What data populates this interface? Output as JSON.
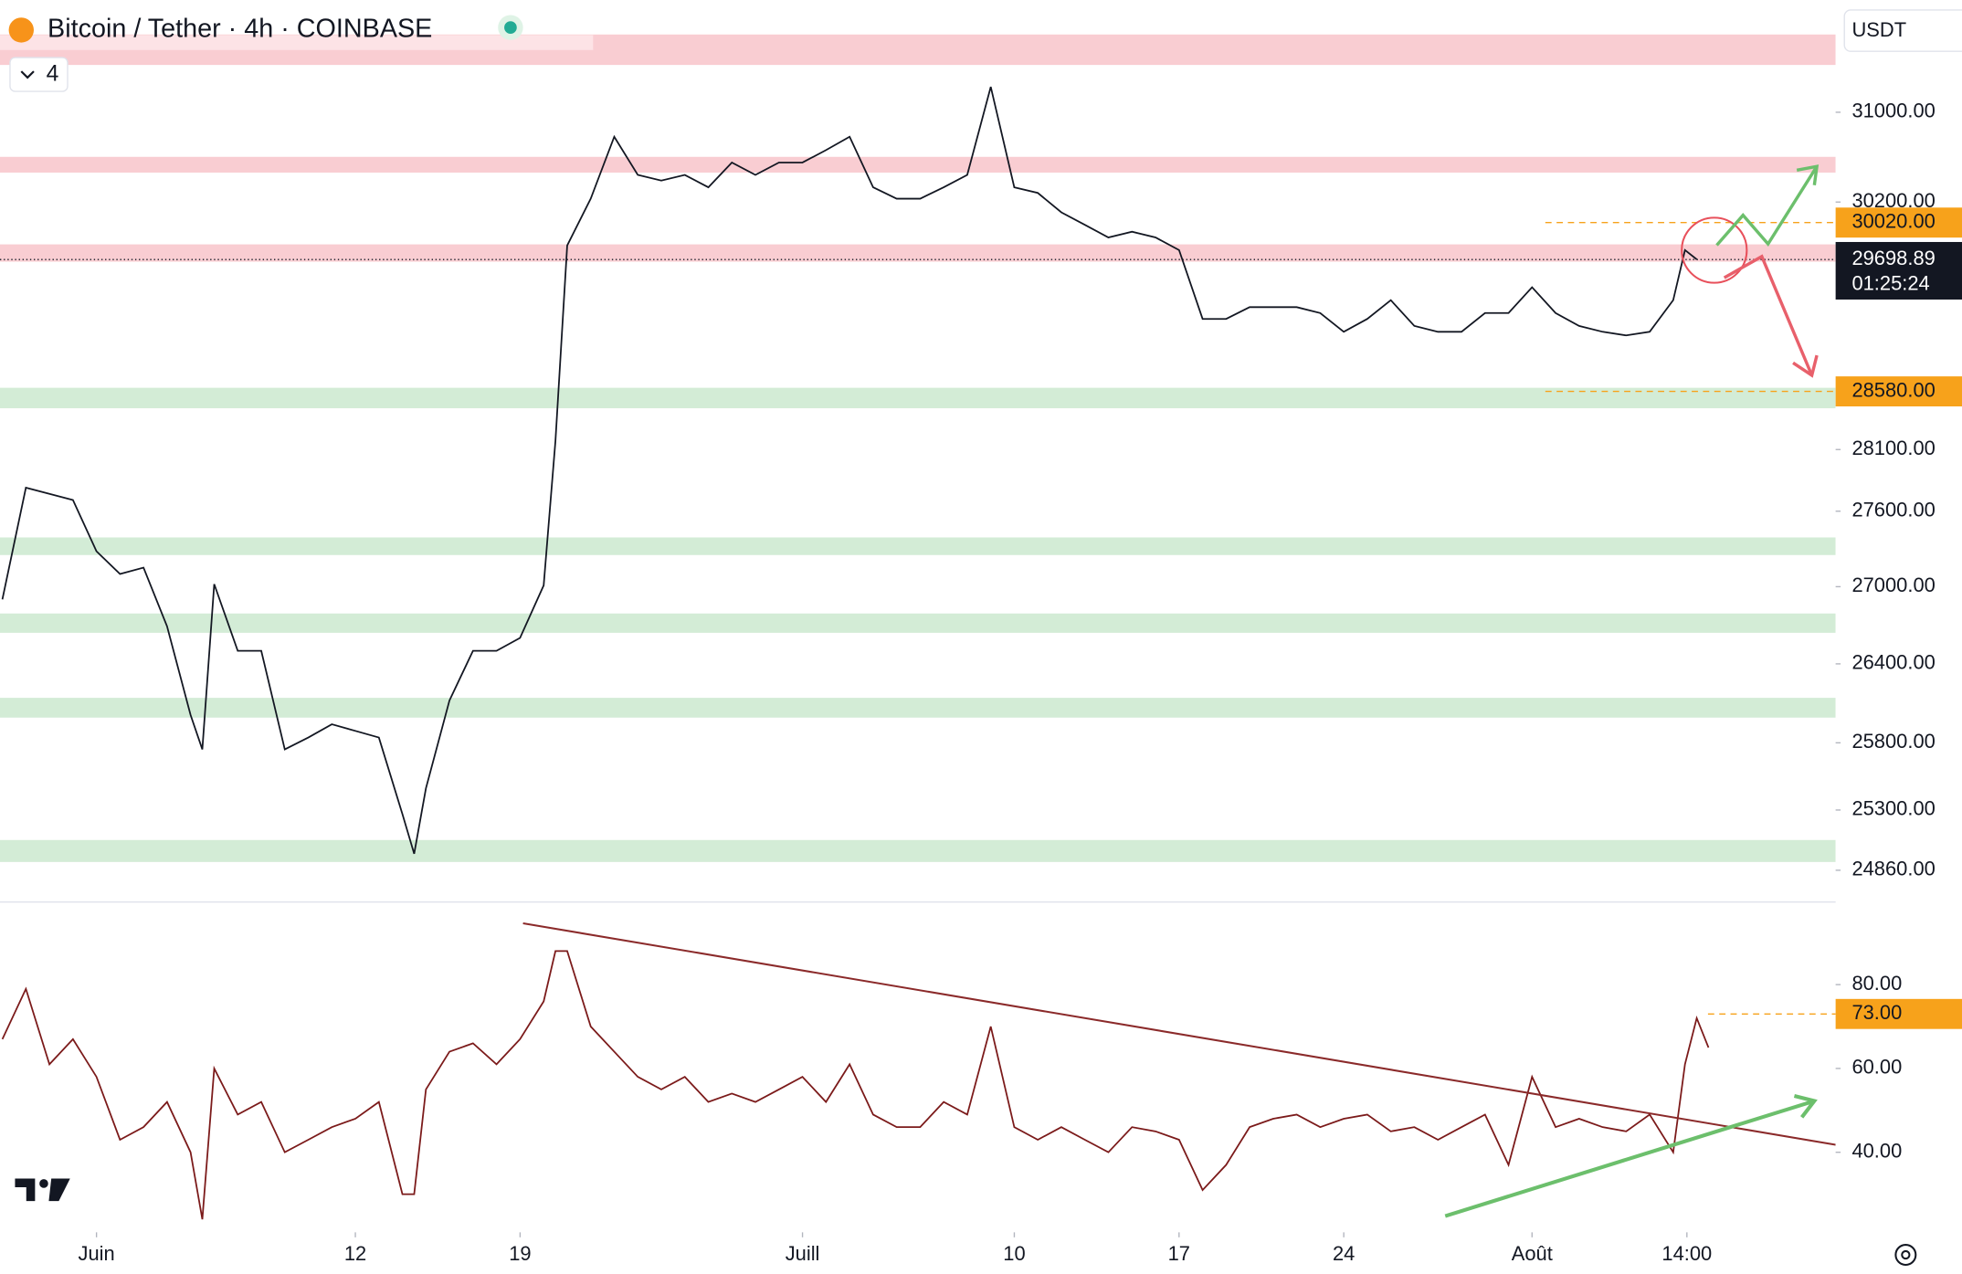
{
  "header": {
    "symbol": "Bitcoin / Tether · 4h · COINBASE",
    "indicator_count": 4,
    "currency": "USDT"
  },
  "chart_data": [
    {
      "type": "line",
      "log": true,
      "color": "#131722",
      "x": [
        -3,
        -2,
        0,
        1,
        2,
        3,
        4,
        5,
        5.5,
        6,
        7,
        8,
        9,
        10,
        11,
        12,
        13,
        14,
        14.5,
        15,
        16,
        17,
        18,
        19,
        20,
        20.5,
        21,
        22,
        23,
        24,
        25,
        26,
        27,
        28,
        29,
        30,
        31,
        32,
        33,
        34,
        35,
        36,
        37,
        38,
        39,
        40,
        41,
        42,
        43,
        44,
        45,
        46,
        47,
        48,
        49,
        50,
        51,
        52,
        53,
        54,
        55,
        56,
        57,
        58,
        59,
        60,
        61,
        62,
        63,
        64,
        65,
        66,
        67,
        68,
        68.5,
        69
      ],
      "values": [
        26900,
        27790,
        27690,
        27280,
        27100,
        27150,
        26690,
        26010,
        25750,
        27020,
        26500,
        26500,
        25750,
        25840,
        25940,
        25890,
        25840,
        25270,
        24980,
        25460,
        26120,
        26500,
        26500,
        26600,
        27010,
        28170,
        29820,
        30230,
        30780,
        30440,
        30390,
        30440,
        30330,
        30550,
        30440,
        30550,
        30550,
        30660,
        30780,
        30330,
        30230,
        30230,
        30330,
        30440,
        31230,
        30330,
        30280,
        30110,
        30000,
        29890,
        29940,
        29890,
        29780,
        29190,
        29190,
        29290,
        29290,
        29290,
        29240,
        29080,
        29190,
        29350,
        29130,
        29080,
        29080,
        29240,
        29240,
        29460,
        29240,
        29130,
        29080,
        29050,
        29080,
        29350,
        29780,
        29700
      ],
      "xlim": [
        -3.1,
        74.9
      ],
      "ylim": [
        24640,
        32030
      ],
      "yticks": [
        {
          "value": 31000,
          "label": "31000.00"
        },
        {
          "value": 30200,
          "label": "30200.00"
        },
        {
          "value": 28100,
          "label": "28100.00"
        },
        {
          "value": 27600,
          "label": "27600.00"
        },
        {
          "value": 27000,
          "label": "27000.00"
        },
        {
          "value": 26400,
          "label": "26400.00"
        },
        {
          "value": 25800,
          "label": "25800.00"
        },
        {
          "value": 25300,
          "label": "25300.00"
        },
        {
          "value": 24860,
          "label": "24860.00"
        }
      ],
      "zones": [
        {
          "range": [
            31430,
            31710
          ],
          "color": "#f9cdd2"
        },
        {
          "range": [
            30460,
            30600
          ],
          "color": "#f9cdd2"
        },
        {
          "range": [
            29680,
            29830
          ],
          "color": "#f9cdd2"
        },
        {
          "range": [
            28440,
            28610
          ],
          "color": "#d3ecd6"
        },
        {
          "range": [
            27250,
            27390
          ],
          "color": "#d3ecd6"
        },
        {
          "range": [
            26640,
            26790
          ],
          "color": "#d3ecd6"
        },
        {
          "range": [
            25990,
            26140
          ],
          "color": "#d3ecd6"
        },
        {
          "range": [
            24920,
            25080
          ],
          "color": "#d3ecd6"
        }
      ],
      "levels": [
        {
          "value": 30020,
          "label": "30020.00",
          "color": "#f7a21b"
        },
        {
          "value": 28580,
          "label": "28580.00",
          "color": "#f7a21b"
        }
      ],
      "last": {
        "value": 29698.89,
        "countdown": "01:25:24"
      }
    },
    {
      "type": "line",
      "log": false,
      "color": "#7b1a1a",
      "x": [
        -3,
        -2,
        -1,
        0,
        1,
        2,
        3,
        4,
        5,
        5.5,
        6,
        7,
        8,
        9,
        10,
        11,
        12,
        13,
        14,
        14.5,
        15,
        16,
        17,
        18,
        19,
        20,
        20.5,
        21,
        22,
        23,
        24,
        25,
        26,
        27,
        28,
        29,
        30,
        31,
        32,
        33,
        34,
        35,
        36,
        37,
        38,
        39,
        40,
        41,
        42,
        43,
        44,
        45,
        46,
        47,
        48,
        49,
        50,
        51,
        52,
        53,
        54,
        55,
        56,
        57,
        58,
        59,
        60,
        61,
        62,
        63,
        64,
        65,
        66,
        67,
        68,
        68.5,
        69,
        69.5
      ],
      "values": [
        67,
        79,
        61,
        67,
        58,
        43,
        46,
        52,
        40,
        24,
        60,
        49,
        52,
        40,
        43,
        46,
        48,
        52,
        30,
        30,
        55,
        64,
        66,
        61,
        67,
        76,
        88,
        88,
        70,
        64,
        58,
        55,
        58,
        52,
        54,
        52,
        55,
        58,
        52,
        61,
        49,
        46,
        46,
        52,
        49,
        70,
        46,
        43,
        46,
        43,
        40,
        46,
        45,
        43,
        31,
        37,
        46,
        48,
        49,
        46,
        48,
        49,
        45,
        46,
        43,
        46,
        49,
        37,
        58,
        46,
        48,
        46,
        45,
        49,
        40,
        61,
        72,
        65
      ],
      "xlim": [
        -3.1,
        74.9
      ],
      "ylim": [
        20.9,
        100
      ],
      "yticks": [
        {
          "value": 80,
          "label": "80.00"
        },
        {
          "value": 60,
          "label": "60.00"
        },
        {
          "value": 40,
          "label": "40.00"
        }
      ],
      "levels": [
        {
          "value": 73,
          "label": "73.00",
          "color": "#f7a21b"
        }
      ],
      "xticks": [
        {
          "value": 1,
          "label": "Juin"
        },
        12,
        19,
        {
          "value": 31,
          "label": "Juill"
        },
        {
          "value": 40,
          "label": "10"
        },
        {
          "value": 47,
          "label": "17"
        },
        {
          "value": 54,
          "label": "24"
        },
        {
          "value": 62,
          "label": "Août"
        },
        {
          "value": 68.58,
          "label": "14:00"
        }
      ]
    }
  ]
}
